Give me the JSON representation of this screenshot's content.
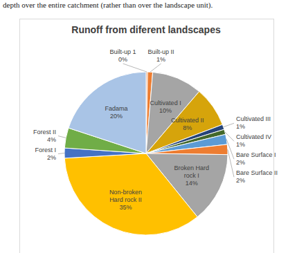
{
  "chart_data": {
    "type": "pie",
    "title": "Runoff from diferent landscapes",
    "annotations": [
      "depth over the entire catchment (rather than over the landscape unit)."
    ],
    "categories": [
      "Built-up 1",
      "Built-up II",
      "Cultivated I",
      "Cultivated II",
      "Cultivated III",
      "Cultivated IV",
      "Bare Surface I",
      "Bare Surface II",
      "Broken Hard rock I",
      "Non-broken Hard rock II",
      "Forest I",
      "Forest II",
      "Fadama"
    ],
    "values": [
      0.3,
      1,
      10,
      8,
      1,
      1,
      2,
      2,
      14,
      35,
      2,
      4,
      20
    ],
    "value_labels": [
      "0%",
      "1%",
      "10%",
      "8%",
      "1%",
      "1%",
      "2%",
      "2%",
      "14%",
      "35%",
      "2%",
      "4%",
      "20%"
    ],
    "colors": [
      "#e0702a",
      "#ed7d31",
      "#a5a5a5",
      "#d6a40b",
      "#264478",
      "#43682b",
      "#5b9bd5",
      "#ed7d31",
      "#a5a5a5",
      "#ffc000",
      "#4472c4",
      "#70ad47",
      "#a9c4e6"
    ],
    "data_labels": true
  }
}
